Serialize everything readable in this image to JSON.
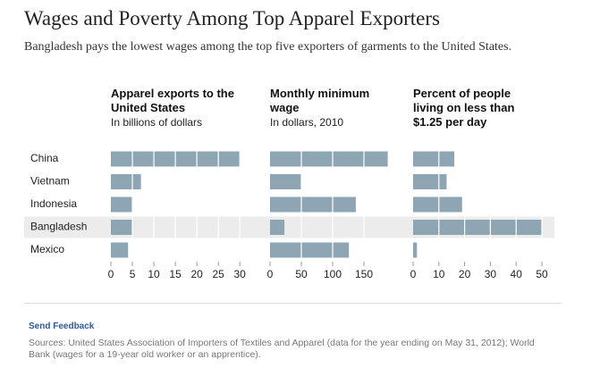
{
  "chart_data": {
    "type": "bar",
    "title": "Wages and Poverty Among Top Apparel Exporters",
    "subtitle": "Bangladesh pays the lowest wages among the top five exporters of garments to the United States.",
    "categories": [
      "China",
      "Vietnam",
      "Indonesia",
      "Bangladesh",
      "Mexico"
    ],
    "highlight": "Bangladesh",
    "color": "#8ea6b4",
    "grid": true,
    "panels": [
      {
        "title": "Apparel exports to the United States",
        "subtitle": "In billions of dollars",
        "values": [
          30,
          7,
          5,
          5,
          4
        ],
        "xlim": [
          0,
          31
        ],
        "xticks": [
          0,
          5,
          10,
          15,
          20,
          25,
          30
        ]
      },
      {
        "title": "Monthly minimum wage",
        "subtitle": "In dollars, 2010",
        "values": [
          188,
          50,
          137,
          23,
          126
        ],
        "xlim": [
          0,
          190
        ],
        "xticks": [
          0,
          50,
          100,
          150
        ]
      },
      {
        "title": "Percent of people living on less than $1.25 per day",
        "values": [
          16,
          13,
          19,
          50,
          1.5
        ],
        "xlim": [
          0,
          50
        ],
        "xticks": [
          0,
          10,
          20,
          30,
          40,
          50
        ]
      }
    ]
  },
  "feedback": "Send Feedback",
  "sources": "Sources: United States Association of Importers of Textiles and Apparel (data for the year ending on May 31, 2012); World Bank (wages for a 19-year old worker or an apprentice)."
}
